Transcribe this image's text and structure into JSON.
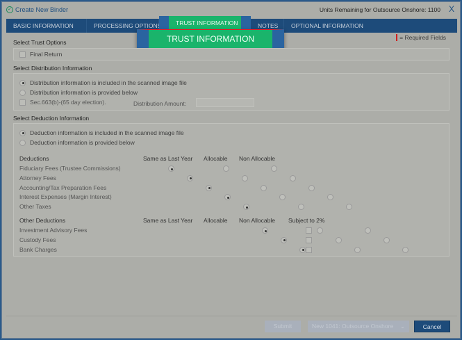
{
  "header": {
    "title": "Create New Binder",
    "units": "Units Remaining for Outsource Onshore: 1100",
    "close": "X"
  },
  "tabs": [
    {
      "label": "BASIC INFORMATION"
    },
    {
      "label": "PROCESSING OPTIONS"
    },
    {
      "label": "TRUST INFORMATION",
      "active": true
    },
    {
      "label": "NOTES"
    },
    {
      "label": "OPTIONAL INFORMATION"
    }
  ],
  "popup": {
    "label": "TRUST INFORMATION"
  },
  "required_legend": "= Required Fields",
  "trust": {
    "heading": "Select Trust Options",
    "final_return": "Final Return"
  },
  "distribution": {
    "heading": "Select Distribution Information",
    "opt1": "Distribution information is included in the scanned image file",
    "opt2": "Distribution information is provided below",
    "sec663": "Sec.663(b)-(65 day election).",
    "amount_label": "Distribution Amount:",
    "amount_value": ""
  },
  "deduction": {
    "heading": "Select Deduction Information",
    "opt1": "Deduction information is included in the scanned image file",
    "opt2": "Deduction information is provided below",
    "cols": {
      "deductions": "Deductions",
      "same": "Same as Last Year",
      "alloc": "Allocable",
      "nonalloc": "Non Allocable",
      "other": "Other Deductions",
      "subject": "Subject to 2%"
    },
    "items": [
      "Fiduciary Fees (Trustee Commissions)",
      "Attorney Fees",
      "Accounting/Tax Preparation Fees",
      "Interest Expenses (Margin Interest)",
      "Other Taxes"
    ],
    "other_items": [
      "Investment Advisory Fees",
      "Custody Fees",
      "Bank Charges"
    ]
  },
  "footer": {
    "submit": "Submit",
    "select": "New 1041: Outsource Onshore",
    "cancel": "Cancel"
  },
  "colors": {
    "accent": "#1d4b7a",
    "highlight": "#1ab46b",
    "required": "#d02020"
  }
}
